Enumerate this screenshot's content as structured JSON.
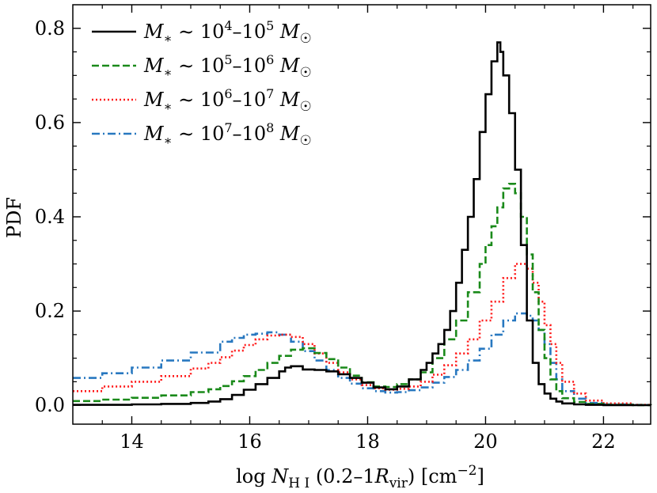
{
  "chart_data": {
    "type": "line",
    "style": "step",
    "title": "",
    "xlabel": "log N_HI (0.2–1R_vir) [cm^-2]",
    "xlabel_parts": {
      "pre": "log ",
      "N": "N",
      "HI": "H I",
      "range": " (0.2–1",
      "R": "R",
      "vir": "vir",
      "unit": ") [cm",
      "exp": "−2",
      "close": "]"
    },
    "ylabel": "PDF",
    "xlim": [
      13.0,
      22.8
    ],
    "ylim": [
      -0.04,
      0.85
    ],
    "xticks": [
      14,
      16,
      18,
      20,
      22
    ],
    "xtick_labels": [
      "14",
      "16",
      "18",
      "20",
      "22"
    ],
    "yticks": [
      0.0,
      0.2,
      0.4,
      0.6,
      0.8
    ],
    "ytick_labels": [
      "0.0",
      "0.2",
      "0.4",
      "0.6",
      "0.8"
    ],
    "legend_position": "top-left",
    "series": [
      {
        "name": "M* ~ 10^4–10^5 M☉",
        "label_parts": {
          "lo": "4",
          "hi": "5"
        },
        "color": "#000000",
        "dash": "solid",
        "x": [
          13.0,
          13.5,
          14.0,
          14.5,
          15.0,
          15.3,
          15.5,
          15.7,
          15.9,
          16.1,
          16.3,
          16.5,
          16.6,
          16.7,
          16.9,
          17.1,
          17.3,
          17.5,
          17.7,
          17.9,
          18.1,
          18.3,
          18.5,
          18.7,
          18.9,
          19.0,
          19.1,
          19.2,
          19.3,
          19.4,
          19.5,
          19.6,
          19.7,
          19.8,
          19.9,
          20.0,
          20.1,
          20.2,
          20.25,
          20.3,
          20.4,
          20.5,
          20.6,
          20.7,
          20.8,
          20.9,
          21.0,
          21.1,
          21.2,
          21.3,
          21.5,
          21.7,
          22.0,
          22.5,
          22.8
        ],
        "y": [
          0.001,
          0.001,
          0.002,
          0.003,
          0.005,
          0.008,
          0.013,
          0.022,
          0.033,
          0.045,
          0.058,
          0.072,
          0.08,
          0.083,
          0.076,
          0.075,
          0.072,
          0.066,
          0.058,
          0.048,
          0.038,
          0.034,
          0.04,
          0.055,
          0.075,
          0.09,
          0.11,
          0.13,
          0.16,
          0.2,
          0.26,
          0.33,
          0.4,
          0.48,
          0.58,
          0.66,
          0.73,
          0.77,
          0.75,
          0.7,
          0.62,
          0.5,
          0.34,
          0.18,
          0.09,
          0.045,
          0.025,
          0.014,
          0.008,
          0.004,
          0.002,
          0.001,
          0.0005,
          0.0003,
          0.0002
        ]
      },
      {
        "name": "M* ~ 10^5–10^6 M☉",
        "label_parts": {
          "lo": "5",
          "hi": "6"
        },
        "color": "#1a8a1a",
        "dash": "dashed",
        "x": [
          13.0,
          13.5,
          14.0,
          14.5,
          15.0,
          15.3,
          15.5,
          15.7,
          15.9,
          16.1,
          16.3,
          16.5,
          16.7,
          16.9,
          17.1,
          17.3,
          17.5,
          17.7,
          17.9,
          18.1,
          18.3,
          18.5,
          18.7,
          18.9,
          19.1,
          19.3,
          19.5,
          19.7,
          19.9,
          20.0,
          20.1,
          20.2,
          20.3,
          20.4,
          20.5,
          20.6,
          20.7,
          20.8,
          20.9,
          21.0,
          21.1,
          21.2,
          21.3,
          21.5,
          21.7,
          22.0,
          22.5,
          22.8
        ],
        "y": [
          0.009,
          0.012,
          0.016,
          0.021,
          0.028,
          0.034,
          0.041,
          0.051,
          0.062,
          0.075,
          0.09,
          0.105,
          0.118,
          0.121,
          0.111,
          0.098,
          0.08,
          0.063,
          0.049,
          0.04,
          0.039,
          0.045,
          0.055,
          0.07,
          0.1,
          0.14,
          0.18,
          0.24,
          0.3,
          0.34,
          0.38,
          0.42,
          0.46,
          0.47,
          0.45,
          0.4,
          0.32,
          0.24,
          0.16,
          0.1,
          0.055,
          0.03,
          0.015,
          0.007,
          0.003,
          0.001,
          0.0005,
          0.0003
        ]
      },
      {
        "name": "M* ~ 10^6–10^7 M☉",
        "label_parts": {
          "lo": "6",
          "hi": "7"
        },
        "color": "#ff1a1a",
        "dash": "dotted",
        "x": [
          13.0,
          13.5,
          14.0,
          14.5,
          15.0,
          15.3,
          15.5,
          15.7,
          15.9,
          16.1,
          16.3,
          16.5,
          16.7,
          16.9,
          17.1,
          17.3,
          17.5,
          17.7,
          17.9,
          18.1,
          18.3,
          18.5,
          18.7,
          18.9,
          19.1,
          19.3,
          19.5,
          19.7,
          19.9,
          20.1,
          20.3,
          20.5,
          20.7,
          20.8,
          20.9,
          21.0,
          21.1,
          21.2,
          21.3,
          21.5,
          21.7,
          22.0,
          22.5,
          22.8
        ],
        "y": [
          0.03,
          0.04,
          0.05,
          0.062,
          0.078,
          0.09,
          0.102,
          0.116,
          0.128,
          0.14,
          0.148,
          0.15,
          0.145,
          0.13,
          0.11,
          0.09,
          0.07,
          0.055,
          0.043,
          0.036,
          0.033,
          0.035,
          0.04,
          0.05,
          0.065,
          0.085,
          0.11,
          0.14,
          0.18,
          0.22,
          0.27,
          0.3,
          0.29,
          0.26,
          0.22,
          0.17,
          0.13,
          0.09,
          0.05,
          0.025,
          0.01,
          0.004,
          0.001,
          0.0005
        ]
      },
      {
        "name": "M* ~ 10^7–10^8 M☉",
        "label_parts": {
          "lo": "7",
          "hi": "8"
        },
        "color": "#2878c0",
        "dash": "dashdot",
        "x": [
          13.0,
          13.5,
          14.0,
          14.5,
          15.0,
          15.5,
          15.7,
          15.9,
          16.1,
          16.3,
          16.5,
          16.7,
          16.9,
          17.1,
          17.3,
          17.5,
          17.7,
          17.9,
          18.1,
          18.3,
          18.5,
          18.7,
          18.9,
          19.1,
          19.3,
          19.5,
          19.7,
          19.9,
          20.1,
          20.3,
          20.5,
          20.7,
          20.8,
          20.9,
          21.0,
          21.1,
          21.2,
          21.3,
          21.5,
          21.7,
          22.0,
          22.5,
          22.8
        ],
        "y": [
          0.058,
          0.068,
          0.08,
          0.095,
          0.112,
          0.135,
          0.143,
          0.15,
          0.152,
          0.155,
          0.15,
          0.135,
          0.115,
          0.095,
          0.075,
          0.058,
          0.046,
          0.036,
          0.03,
          0.027,
          0.028,
          0.032,
          0.038,
          0.048,
          0.06,
          0.075,
          0.095,
          0.12,
          0.15,
          0.18,
          0.195,
          0.19,
          0.18,
          0.16,
          0.13,
          0.09,
          0.055,
          0.03,
          0.014,
          0.005,
          0.002,
          0.0008,
          0.0004
        ]
      }
    ]
  }
}
